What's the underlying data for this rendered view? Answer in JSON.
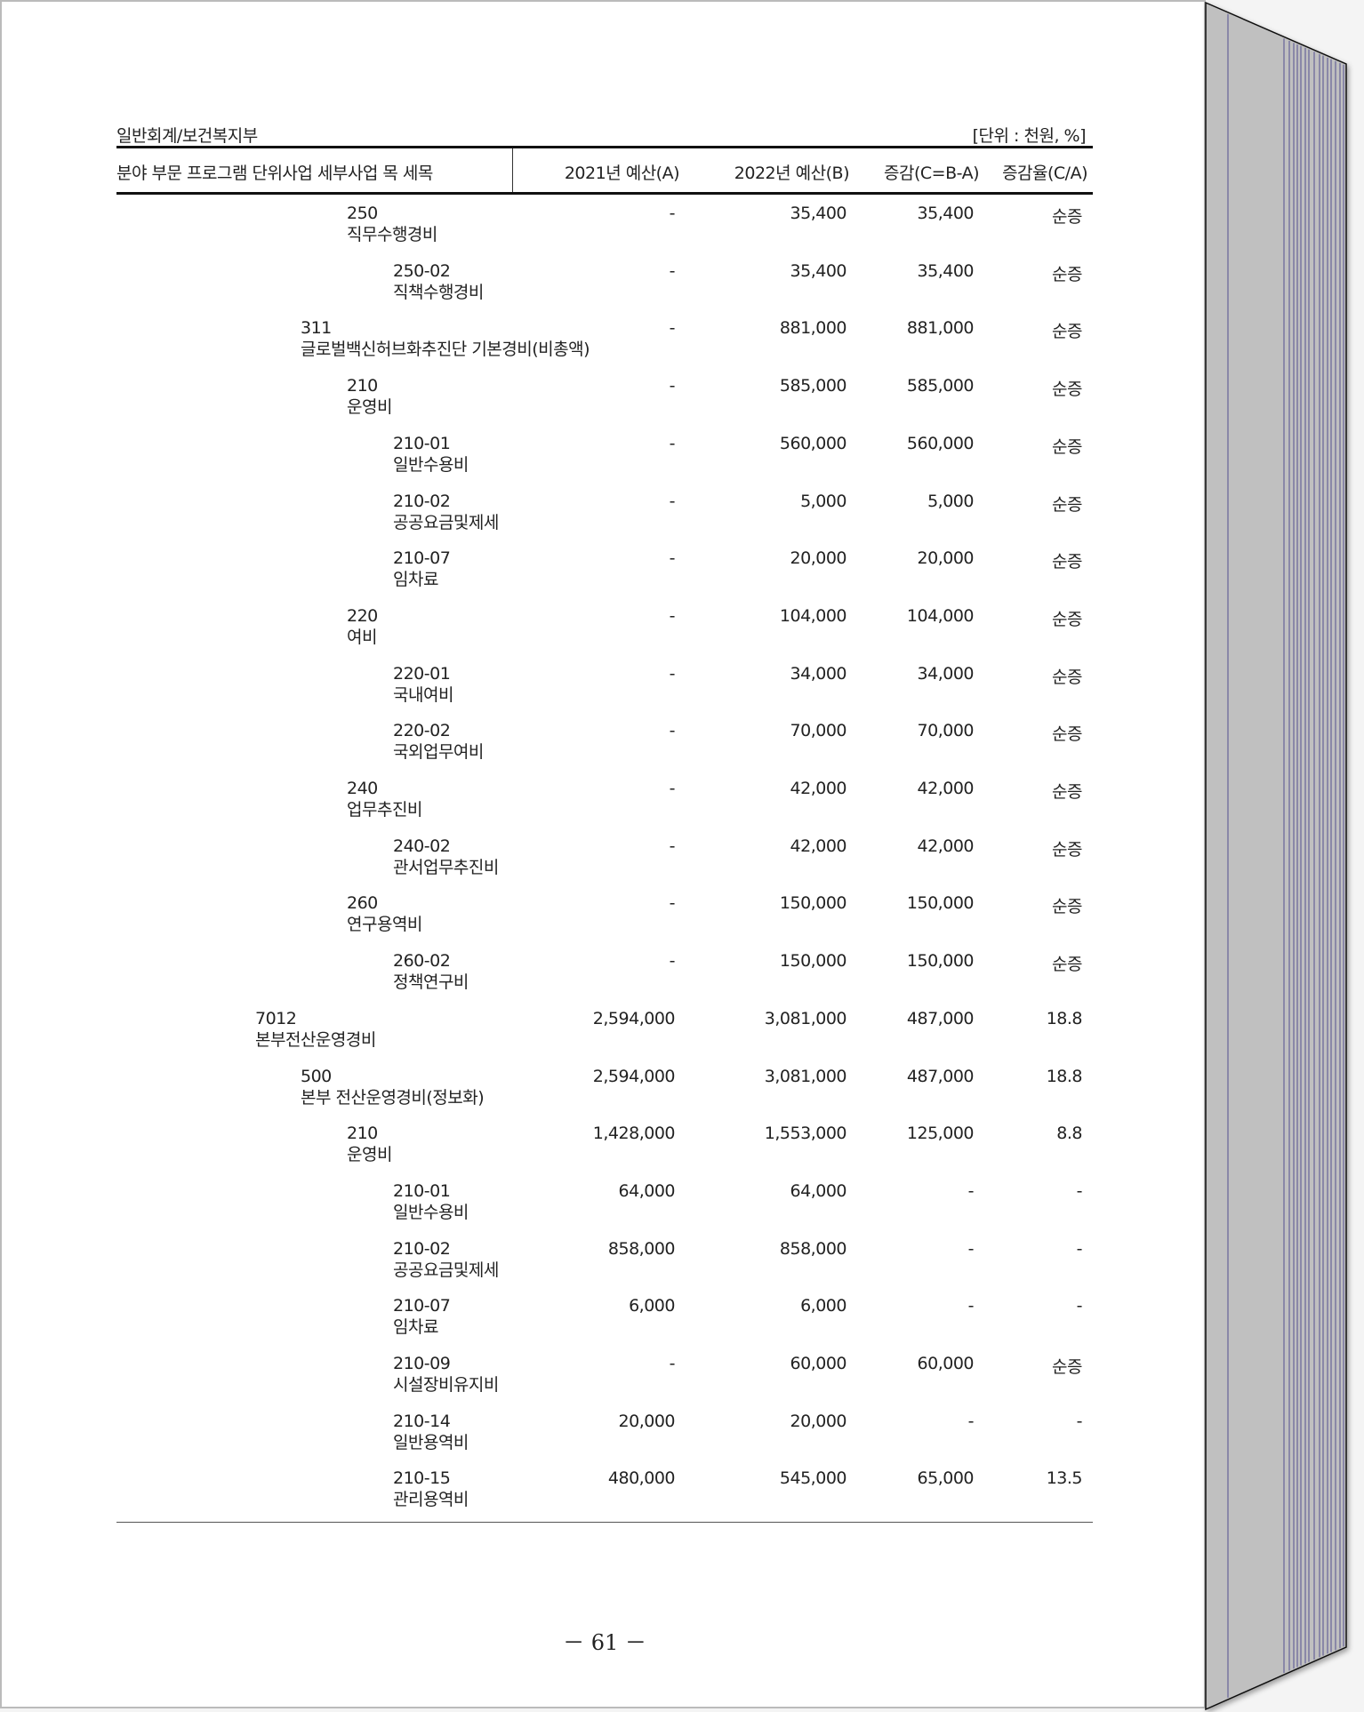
{
  "header": {
    "account": "일반회계/보건복지부",
    "unit": "[단위 : 천원, %]"
  },
  "columns": {
    "category": "분야 부문 프로그램 단위사업 세부사업 목 세목",
    "budget_2021": "2021년 예산(A)",
    "budget_2022": "2022년 예산(B)",
    "change": "증감(C=B-A)",
    "rate": "증감율(C/A)"
  },
  "rows": [
    {
      "level": 3,
      "code": "250",
      "name": "직무수행경비",
      "a": "-",
      "b": "35,400",
      "c": "35,400",
      "rate": "순증"
    },
    {
      "level": 4,
      "code": "250-02",
      "name": "직책수행경비",
      "a": "-",
      "b": "35,400",
      "c": "35,400",
      "rate": "순증"
    },
    {
      "level": 2,
      "code": "311",
      "name": "글로벌백신허브화추진단 기본경비(비총액)",
      "a": "-",
      "b": "881,000",
      "c": "881,000",
      "rate": "순증"
    },
    {
      "level": 3,
      "code": "210",
      "name": "운영비",
      "a": "-",
      "b": "585,000",
      "c": "585,000",
      "rate": "순증"
    },
    {
      "level": 4,
      "code": "210-01",
      "name": "일반수용비",
      "a": "-",
      "b": "560,000",
      "c": "560,000",
      "rate": "순증"
    },
    {
      "level": 4,
      "code": "210-02",
      "name": "공공요금및제세",
      "a": "-",
      "b": "5,000",
      "c": "5,000",
      "rate": "순증"
    },
    {
      "level": 4,
      "code": "210-07",
      "name": "임차료",
      "a": "-",
      "b": "20,000",
      "c": "20,000",
      "rate": "순증"
    },
    {
      "level": 3,
      "code": "220",
      "name": "여비",
      "a": "-",
      "b": "104,000",
      "c": "104,000",
      "rate": "순증"
    },
    {
      "level": 4,
      "code": "220-01",
      "name": "국내여비",
      "a": "-",
      "b": "34,000",
      "c": "34,000",
      "rate": "순증"
    },
    {
      "level": 4,
      "code": "220-02",
      "name": "국외업무여비",
      "a": "-",
      "b": "70,000",
      "c": "70,000",
      "rate": "순증"
    },
    {
      "level": 3,
      "code": "240",
      "name": "업무추진비",
      "a": "-",
      "b": "42,000",
      "c": "42,000",
      "rate": "순증"
    },
    {
      "level": 4,
      "code": "240-02",
      "name": "관서업무추진비",
      "a": "-",
      "b": "42,000",
      "c": "42,000",
      "rate": "순증"
    },
    {
      "level": 3,
      "code": "260",
      "name": "연구용역비",
      "a": "-",
      "b": "150,000",
      "c": "150,000",
      "rate": "순증"
    },
    {
      "level": 4,
      "code": "260-02",
      "name": "정책연구비",
      "a": "-",
      "b": "150,000",
      "c": "150,000",
      "rate": "순증"
    },
    {
      "level": 1,
      "code": "7012",
      "name": "본부전산운영경비",
      "a": "2,594,000",
      "b": "3,081,000",
      "c": "487,000",
      "rate": "18.8"
    },
    {
      "level": 2,
      "code": "500",
      "name": "본부 전산운영경비(정보화)",
      "a": "2,594,000",
      "b": "3,081,000",
      "c": "487,000",
      "rate": "18.8"
    },
    {
      "level": 3,
      "code": "210",
      "name": "운영비",
      "a": "1,428,000",
      "b": "1,553,000",
      "c": "125,000",
      "rate": "8.8"
    },
    {
      "level": 4,
      "code": "210-01",
      "name": "일반수용비",
      "a": "64,000",
      "b": "64,000",
      "c": "-",
      "rate": "-"
    },
    {
      "level": 4,
      "code": "210-02",
      "name": "공공요금및제세",
      "a": "858,000",
      "b": "858,000",
      "c": "-",
      "rate": "-"
    },
    {
      "level": 4,
      "code": "210-07",
      "name": "임차료",
      "a": "6,000",
      "b": "6,000",
      "c": "-",
      "rate": "-"
    },
    {
      "level": 4,
      "code": "210-09",
      "name": "시설장비유지비",
      "a": "-",
      "b": "60,000",
      "c": "60,000",
      "rate": "순증"
    },
    {
      "level": 4,
      "code": "210-14",
      "name": "일반용역비",
      "a": "20,000",
      "b": "20,000",
      "c": "-",
      "rate": "-"
    },
    {
      "level": 4,
      "code": "210-15",
      "name": "관리용역비",
      "a": "480,000",
      "b": "545,000",
      "c": "65,000",
      "rate": "13.5"
    }
  ],
  "footer": {
    "page_number": "－ 61 －"
  }
}
